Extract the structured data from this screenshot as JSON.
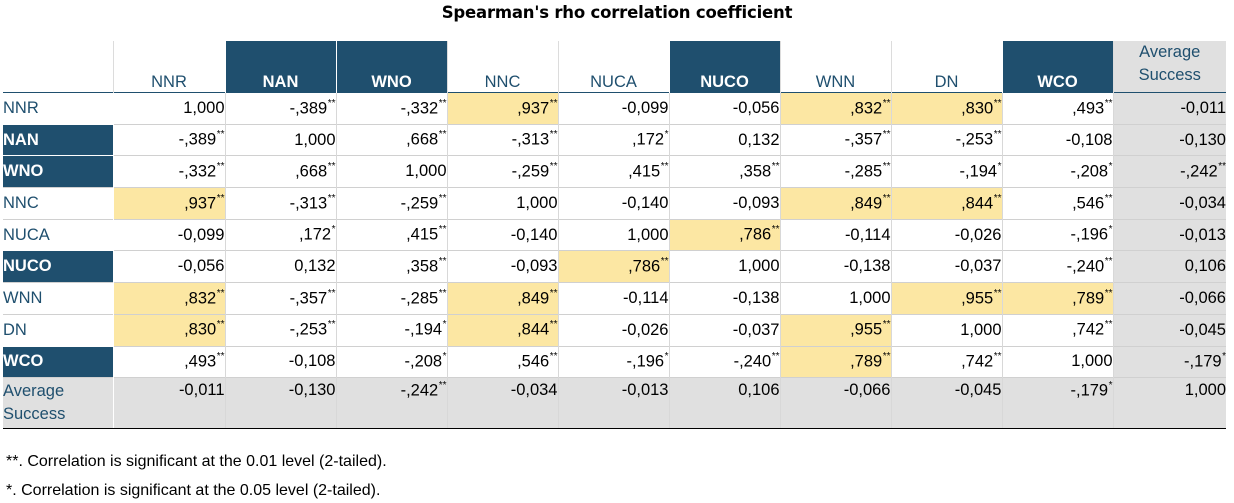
{
  "chart_data": {
    "type": "table",
    "title": "Spearman's rho correlation coefficient",
    "columns": [
      {
        "label": "NNR",
        "style": "plain"
      },
      {
        "label": "NAN",
        "style": "dark"
      },
      {
        "label": "WNO",
        "style": "dark"
      },
      {
        "label": "NNC",
        "style": "plain"
      },
      {
        "label": "NUCA",
        "style": "plain"
      },
      {
        "label": "NUCO",
        "style": "dark"
      },
      {
        "label": "WNN",
        "style": "plain"
      },
      {
        "label": "DN",
        "style": "plain"
      },
      {
        "label": "WCO",
        "style": "dark"
      },
      {
        "label": "Average Success",
        "style": "grey"
      }
    ],
    "rows": [
      {
        "label": "NNR",
        "style": "plain",
        "cells": [
          {
            "v": "1,000",
            "s": ""
          },
          {
            "v": "-,389",
            "s": "**"
          },
          {
            "v": "-,332",
            "s": "**"
          },
          {
            "v": ",937",
            "s": "**",
            "hl": true
          },
          {
            "v": "-0,099",
            "s": ""
          },
          {
            "v": "-0,056",
            "s": ""
          },
          {
            "v": ",832",
            "s": "**",
            "hl": true
          },
          {
            "v": ",830",
            "s": "**",
            "hl": true
          },
          {
            "v": ",493",
            "s": "**"
          },
          {
            "v": "-0,011",
            "s": ""
          }
        ]
      },
      {
        "label": "NAN",
        "style": "dark",
        "cells": [
          {
            "v": "-,389",
            "s": "**"
          },
          {
            "v": "1,000",
            "s": ""
          },
          {
            "v": ",668",
            "s": "**"
          },
          {
            "v": "-,313",
            "s": "**"
          },
          {
            "v": ",172",
            "s": "*"
          },
          {
            "v": "0,132",
            "s": ""
          },
          {
            "v": "-,357",
            "s": "**"
          },
          {
            "v": "-,253",
            "s": "**"
          },
          {
            "v": "-0,108",
            "s": ""
          },
          {
            "v": "-0,130",
            "s": ""
          }
        ]
      },
      {
        "label": "WNO",
        "style": "dark",
        "cells": [
          {
            "v": "-,332",
            "s": "**"
          },
          {
            "v": ",668",
            "s": "**"
          },
          {
            "v": "1,000",
            "s": ""
          },
          {
            "v": "-,259",
            "s": "**"
          },
          {
            "v": ",415",
            "s": "**"
          },
          {
            "v": ",358",
            "s": "**"
          },
          {
            "v": "-,285",
            "s": "**"
          },
          {
            "v": "-,194",
            "s": "*"
          },
          {
            "v": "-,208",
            "s": "*"
          },
          {
            "v": "-,242",
            "s": "**"
          }
        ]
      },
      {
        "label": "NNC",
        "style": "plain",
        "cells": [
          {
            "v": ",937",
            "s": "**",
            "hl": true
          },
          {
            "v": "-,313",
            "s": "**"
          },
          {
            "v": "-,259",
            "s": "**"
          },
          {
            "v": "1,000",
            "s": ""
          },
          {
            "v": "-0,140",
            "s": ""
          },
          {
            "v": "-0,093",
            "s": ""
          },
          {
            "v": ",849",
            "s": "**",
            "hl": true
          },
          {
            "v": ",844",
            "s": "**",
            "hl": true
          },
          {
            "v": ",546",
            "s": "**"
          },
          {
            "v": "-0,034",
            "s": ""
          }
        ]
      },
      {
        "label": "NUCA",
        "style": "plain",
        "cells": [
          {
            "v": "-0,099",
            "s": ""
          },
          {
            "v": ",172",
            "s": "*"
          },
          {
            "v": ",415",
            "s": "**"
          },
          {
            "v": "-0,140",
            "s": ""
          },
          {
            "v": "1,000",
            "s": ""
          },
          {
            "v": ",786",
            "s": "**",
            "hl": true
          },
          {
            "v": "-0,114",
            "s": ""
          },
          {
            "v": "-0,026",
            "s": ""
          },
          {
            "v": "-,196",
            "s": "*"
          },
          {
            "v": "-0,013",
            "s": ""
          }
        ]
      },
      {
        "label": "NUCO",
        "style": "dark",
        "cells": [
          {
            "v": "-0,056",
            "s": ""
          },
          {
            "v": "0,132",
            "s": ""
          },
          {
            "v": ",358",
            "s": "**"
          },
          {
            "v": "-0,093",
            "s": ""
          },
          {
            "v": ",786",
            "s": "**",
            "hl": true
          },
          {
            "v": "1,000",
            "s": ""
          },
          {
            "v": "-0,138",
            "s": ""
          },
          {
            "v": "-0,037",
            "s": ""
          },
          {
            "v": "-,240",
            "s": "**"
          },
          {
            "v": "0,106",
            "s": ""
          }
        ]
      },
      {
        "label": "WNN",
        "style": "plain",
        "cells": [
          {
            "v": ",832",
            "s": "**",
            "hl": true
          },
          {
            "v": "-,357",
            "s": "**"
          },
          {
            "v": "-,285",
            "s": "**"
          },
          {
            "v": ",849",
            "s": "**",
            "hl": true
          },
          {
            "v": "-0,114",
            "s": ""
          },
          {
            "v": "-0,138",
            "s": ""
          },
          {
            "v": "1,000",
            "s": ""
          },
          {
            "v": ",955",
            "s": "**",
            "hl": true
          },
          {
            "v": ",789",
            "s": "**",
            "hl": true
          },
          {
            "v": "-0,066",
            "s": ""
          }
        ]
      },
      {
        "label": "DN",
        "style": "plain",
        "cells": [
          {
            "v": ",830",
            "s": "**",
            "hl": true
          },
          {
            "v": "-,253",
            "s": "**"
          },
          {
            "v": "-,194",
            "s": "*"
          },
          {
            "v": ",844",
            "s": "**",
            "hl": true
          },
          {
            "v": "-0,026",
            "s": ""
          },
          {
            "v": "-0,037",
            "s": ""
          },
          {
            "v": ",955",
            "s": "**",
            "hl": true
          },
          {
            "v": "1,000",
            "s": ""
          },
          {
            "v": ",742",
            "s": "**"
          },
          {
            "v": "-0,045",
            "s": ""
          }
        ]
      },
      {
        "label": "WCO",
        "style": "dark",
        "cells": [
          {
            "v": ",493",
            "s": "**"
          },
          {
            "v": "-0,108",
            "s": ""
          },
          {
            "v": "-,208",
            "s": "*"
          },
          {
            "v": ",546",
            "s": "**"
          },
          {
            "v": "-,196",
            "s": "*"
          },
          {
            "v": "-,240",
            "s": "**"
          },
          {
            "v": ",789",
            "s": "**",
            "hl": true
          },
          {
            "v": ",742",
            "s": "**"
          },
          {
            "v": "1,000",
            "s": ""
          },
          {
            "v": "-,179",
            "s": "*"
          }
        ]
      },
      {
        "label": "Average Success",
        "style": "grey",
        "cells": [
          {
            "v": "-0,011",
            "s": ""
          },
          {
            "v": "-0,130",
            "s": ""
          },
          {
            "v": "-,242",
            "s": "**"
          },
          {
            "v": "-0,034",
            "s": ""
          },
          {
            "v": "-0,013",
            "s": ""
          },
          {
            "v": "0,106",
            "s": ""
          },
          {
            "v": "-0,066",
            "s": ""
          },
          {
            "v": "-0,045",
            "s": ""
          },
          {
            "v": "-,179",
            "s": "*"
          },
          {
            "v": "1,000",
            "s": ""
          }
        ]
      }
    ],
    "notes": [
      "**. Correlation is significant at the 0.01 level (2-tailed).",
      "*. Correlation is significant at the 0.05 level (2-tailed)."
    ],
    "colors": {
      "header_dark": "#1f4f6e",
      "highlight": "#fce7a3",
      "grey": "#e0e0e0"
    }
  }
}
